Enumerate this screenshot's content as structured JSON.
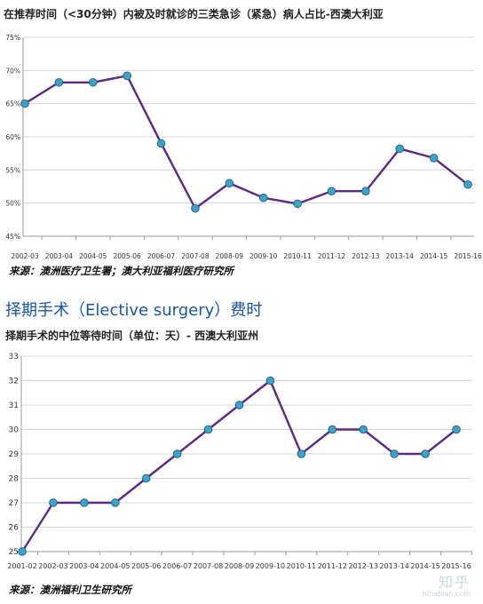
{
  "chart_data": [
    {
      "type": "line",
      "title": "在推荐时间（<30分钟）内被及时就诊的三类急诊（紧急）病人占比-西澳大利亚",
      "categories": [
        "2002-03",
        "2003-04",
        "2004-05",
        "2005-06",
        "2006-07",
        "2007-08",
        "2008-09",
        "2009-10",
        "2010-11",
        "2011-12",
        "2012-13",
        "2013-14",
        "2014-15",
        "2015-16"
      ],
      "values": [
        65.0,
        68.2,
        68.2,
        69.2,
        59.0,
        49.2,
        53.0,
        50.8,
        49.9,
        51.8,
        51.8,
        58.2,
        56.8,
        52.8
      ],
      "ylim": [
        45,
        75
      ],
      "yticks": [
        45,
        50,
        55,
        60,
        65,
        70,
        75
      ],
      "ytick_labels": [
        "45%",
        "50%",
        "55%",
        "60%",
        "65%",
        "70%",
        "75%"
      ],
      "grid": true,
      "line_color": "#5b2a82",
      "marker_color": "#3aa6c7"
    },
    {
      "type": "line",
      "title": "择期手术的中位等待时间（单位：天）- 西澳大利亚州",
      "categories": [
        "2001-02",
        "2002-03",
        "2003-04",
        "2004-05",
        "2005-06",
        "2006-07",
        "2007-08",
        "2008-09",
        "2009-10",
        "2010-11",
        "2011-12",
        "2012-13",
        "2013-14",
        "2014-15",
        "2015-16"
      ],
      "values": [
        25,
        27,
        27,
        27,
        28,
        29,
        30,
        31,
        32,
        29,
        30,
        30,
        29,
        29,
        30
      ],
      "ylim": [
        25,
        33
      ],
      "yticks": [
        25,
        26,
        27,
        28,
        29,
        30,
        31,
        32,
        33
      ],
      "ytick_labels": [
        "25",
        "26",
        "27",
        "28",
        "29",
        "30",
        "31",
        "32",
        "33"
      ],
      "grid": true,
      "line_color": "#5b2a82",
      "marker_color": "#3aa6c7"
    }
  ],
  "page": {
    "source1": "来源：澳洲医疗卫生署；澳大利亚福利医疗研究所",
    "section_heading": "择期手术（Elective surgery）费时",
    "source2": "来源：澳洲福利卫生研究所",
    "watermark": "知乎",
    "watermark_sub": "hinabian.com"
  }
}
